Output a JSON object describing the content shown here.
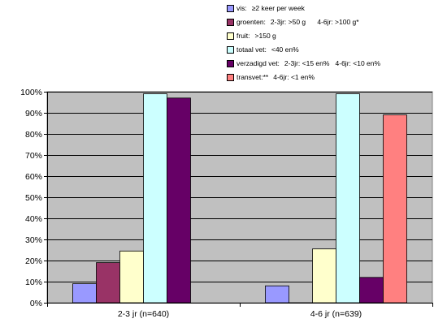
{
  "chart_data": {
    "type": "bar",
    "categories": [
      "2-3 jr (n=640)",
      "4-6 jr (n=639)"
    ],
    "series": [
      {
        "name": "vis:",
        "criteria": "≥2 keer per week",
        "color": "#9999ff",
        "values": [
          9,
          8
        ]
      },
      {
        "name": "groenten:",
        "criteria": "2-3jr: >50 g      4-6jr: >100 g*",
        "color": "#993366",
        "values": [
          19,
          0
        ]
      },
      {
        "name": "fruit:",
        "criteria": ">150 g",
        "color": "#ffffcc",
        "values": [
          24.5,
          25.5
        ]
      },
      {
        "name": "totaal vet:",
        "criteria": "<40 en%",
        "color": "#ccffff",
        "values": [
          99,
          99
        ]
      },
      {
        "name": "verzadigd vet:",
        "criteria": "2-3jr: <15 en%   4-6jr: <10 en%",
        "color": "#660066",
        "values": [
          97,
          12
        ]
      },
      {
        "name": "transvet:**",
        "criteria": "4-6jr: <1 en%",
        "color": "#ff8080",
        "values": [
          null,
          89
        ]
      }
    ],
    "yticks": [
      "0%",
      "10%",
      "20%",
      "30%",
      "40%",
      "50%",
      "60%",
      "70%",
      "80%",
      "90%",
      "100%"
    ],
    "ylim": [
      0,
      100
    ],
    "grid": true,
    "legend_position": "top-right",
    "plot_background": "#c0c0c0"
  }
}
